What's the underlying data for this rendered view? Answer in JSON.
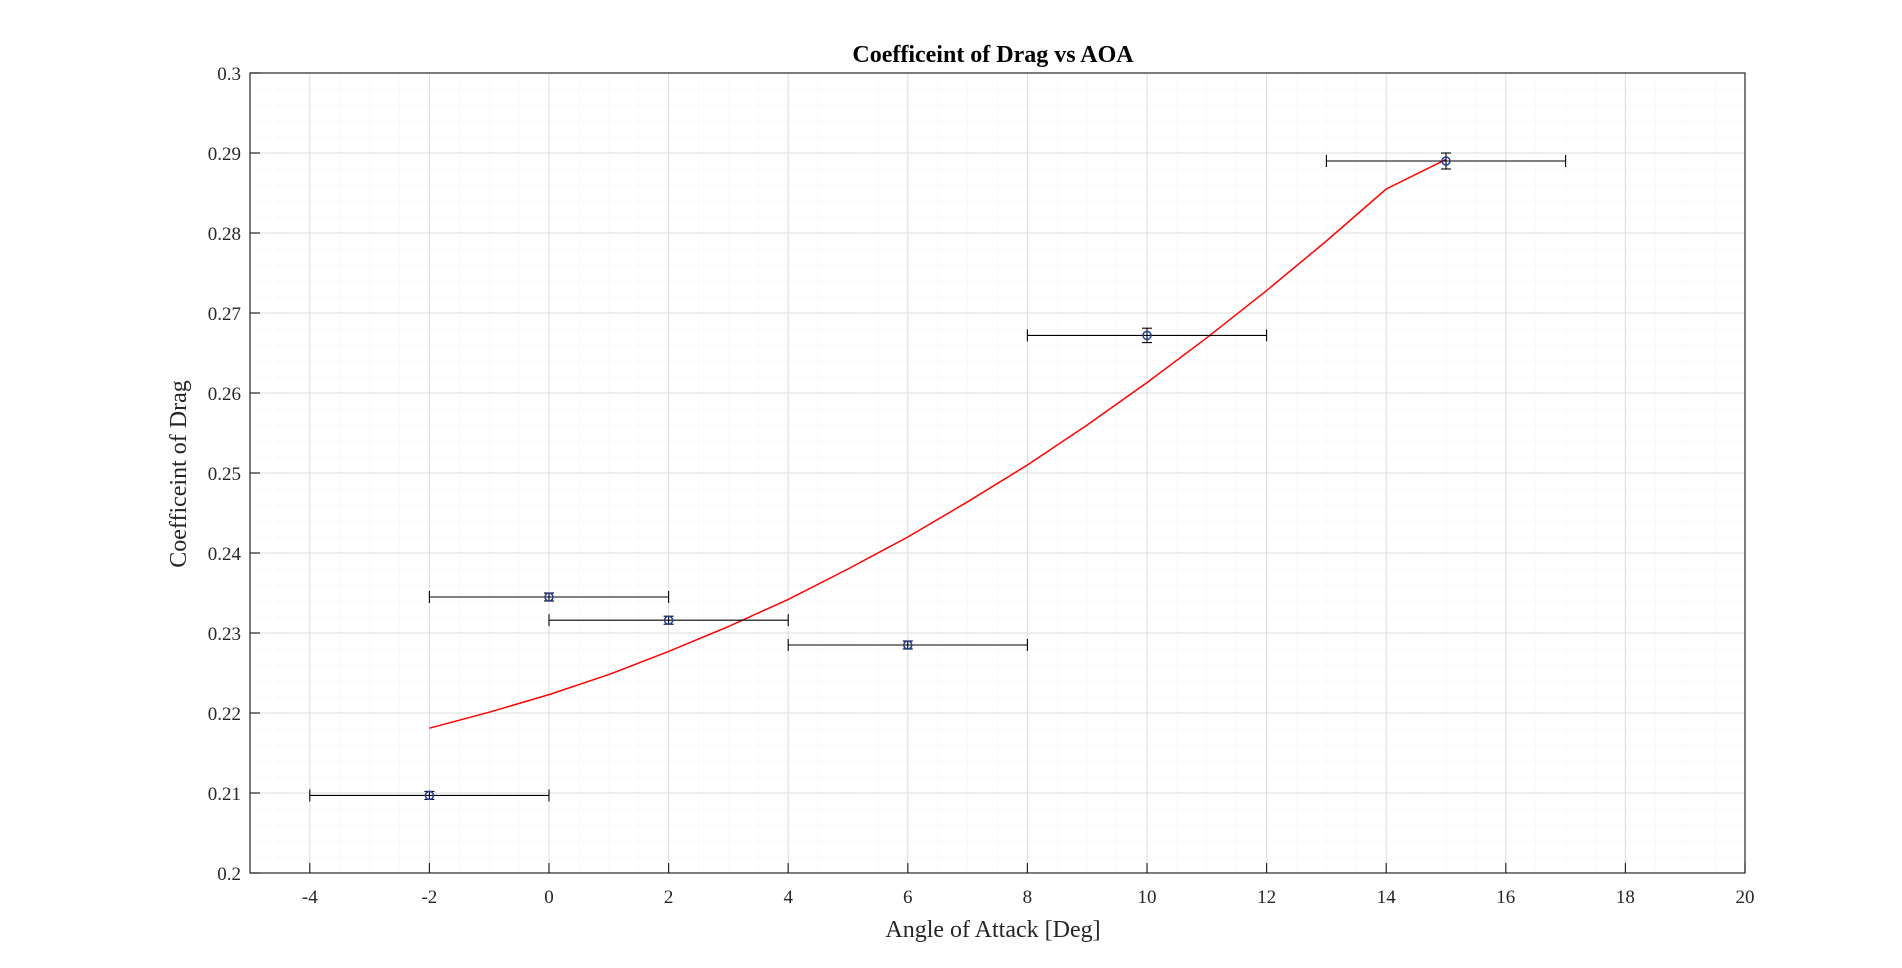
{
  "chart_data": {
    "type": "scatter",
    "title": "Coefficeint of Drag vs AOA",
    "xlabel": "Angle of Attack [Deg]",
    "ylabel": "Coefficeint of Drag",
    "xlim": [
      -5,
      20
    ],
    "ylim": [
      0.2,
      0.3
    ],
    "x_ticks": [
      -4,
      -2,
      0,
      2,
      4,
      6,
      8,
      10,
      12,
      14,
      16,
      18,
      20
    ],
    "y_ticks": [
      0.2,
      0.21,
      0.22,
      0.23,
      0.24,
      0.25,
      0.26,
      0.27,
      0.28,
      0.29,
      0.3
    ],
    "x_tick_labels": [
      "-4",
      "-2",
      "0",
      "2",
      "4",
      "6",
      "8",
      "10",
      "12",
      "14",
      "16",
      "18",
      "20"
    ],
    "y_tick_labels": [
      "0.2",
      "0.21",
      "0.22",
      "0.23",
      "0.24",
      "0.25",
      "0.26",
      "0.27",
      "0.28",
      "0.29",
      "0.3"
    ],
    "grid": true,
    "minor_grid": true,
    "series": [
      {
        "type": "errorbar",
        "color": "#1f3c99",
        "points": [
          {
            "x": -2,
            "y": 0.2097,
            "x_err": 2,
            "y_err": 0.0005
          },
          {
            "x": 0,
            "y": 0.2345,
            "x_err": 2,
            "y_err": 0.0005
          },
          {
            "x": 2,
            "y": 0.2316,
            "x_err": 2,
            "y_err": 0.0005
          },
          {
            "x": 6,
            "y": 0.2285,
            "x_err": 2,
            "y_err": 0.0005
          },
          {
            "x": 10,
            "y": 0.2672,
            "x_err": 2,
            "y_err": 0.0009
          },
          {
            "x": 15,
            "y": 0.289,
            "x_err": 2,
            "y_err": 0.001
          }
        ]
      },
      {
        "type": "line",
        "color": "#ff0000",
        "x": [
          -2,
          -1,
          0,
          1,
          2,
          3,
          4,
          5,
          6,
          7,
          8,
          9,
          10,
          11,
          12,
          13,
          14,
          15
        ],
        "y": [
          0.2181,
          0.2201,
          0.2223,
          0.2248,
          0.2277,
          0.2308,
          0.2342,
          0.238,
          0.242,
          0.2464,
          0.251,
          0.256,
          0.2613,
          0.2669,
          0.2728,
          0.279,
          0.2855,
          0.2892
        ]
      }
    ],
    "colors": {
      "axis": "#262626",
      "grid_major": "#dcdcdc",
      "grid_minor": "#ececec",
      "errorbar": "#000000"
    }
  }
}
